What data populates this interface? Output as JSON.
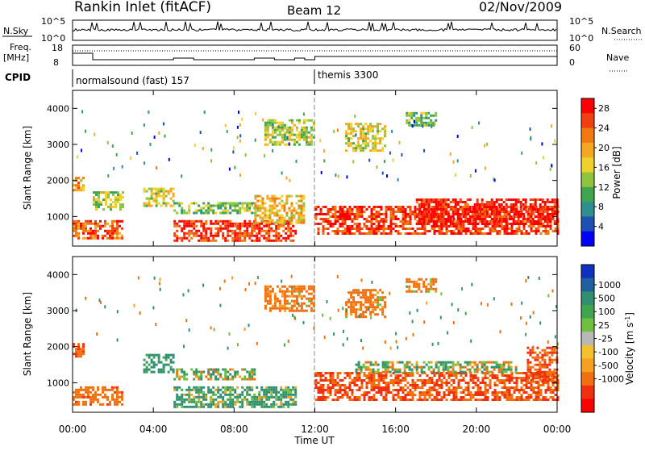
{
  "header": {
    "title": "Rankin Inlet (fitACF)",
    "beam": "Beam 12",
    "date": "02/Nov/2009"
  },
  "noise_panel": {
    "left_label": "N.Sky",
    "right_label": "N.Search",
    "left_ticks": [
      "10^5",
      "10^0"
    ],
    "right_ticks": [
      "10^5",
      "10^0"
    ]
  },
  "freq_panel": {
    "left_label_top": "Freq.",
    "left_label_bottom": "[MHz]",
    "left_ticks": [
      "18",
      "8"
    ],
    "right_ticks": [
      "60",
      "0"
    ],
    "right_label": "Nave"
  },
  "cpid": {
    "label": "CPID",
    "segments": [
      {
        "name": "normalsound (fast) 157",
        "start_hour": 0,
        "end_hour": 12
      },
      {
        "name": "themis 3300",
        "start_hour": 12,
        "end_hour": 24
      }
    ]
  },
  "chart_data": [
    {
      "type": "heatmap",
      "name": "power",
      "ylabel": "Slant Range [km]",
      "xlabel": "Time UT",
      "x_ticks": [
        "00:00",
        "04:00",
        "08:00",
        "12:00",
        "16:00",
        "20:00",
        "00:00"
      ],
      "xlim_hours": [
        0,
        24
      ],
      "y_ticks": [
        "1000",
        "2000",
        "3000",
        "4000"
      ],
      "ylim_km": [
        180,
        4500
      ],
      "colorbar": {
        "label": "Power [dB]",
        "ticks": [
          "4",
          "8",
          "12",
          "16",
          "20",
          "24",
          "28"
        ],
        "range": [
          0,
          30
        ],
        "colors": [
          "#0000ff",
          "#1e50b4",
          "#2f8f8f",
          "#3fa64f",
          "#8cc43c",
          "#f0d02a",
          "#f5a623",
          "#f07a10",
          "#f04010",
          "#ff0000"
        ]
      },
      "regions": [
        {
          "t0": 0.0,
          "t1": 0.5,
          "r0": 1700,
          "r1": 2100,
          "v": 20
        },
        {
          "t0": 0.0,
          "t1": 2.5,
          "r0": 400,
          "r1": 900,
          "v": 24
        },
        {
          "t0": 1.0,
          "t1": 2.5,
          "r0": 1200,
          "r1": 1700,
          "v": 14
        },
        {
          "t0": 3.5,
          "t1": 5.0,
          "r0": 1300,
          "r1": 1800,
          "v": 16
        },
        {
          "t0": 5.0,
          "t1": 11.0,
          "r0": 300,
          "r1": 900,
          "v": 26
        },
        {
          "t0": 5.0,
          "t1": 9.0,
          "r0": 1100,
          "r1": 1400,
          "v": 12
        },
        {
          "t0": 9.0,
          "t1": 11.5,
          "r0": 800,
          "r1": 1600,
          "v": 18
        },
        {
          "t0": 12.0,
          "t1": 24.0,
          "r0": 500,
          "r1": 1300,
          "v": 26
        },
        {
          "t0": 17.0,
          "t1": 24.0,
          "r0": 800,
          "r1": 1500,
          "v": 28
        },
        {
          "t0": 9.5,
          "t1": 12.0,
          "r0": 3000,
          "r1": 3700,
          "v": 14
        },
        {
          "t0": 13.5,
          "t1": 15.5,
          "r0": 2800,
          "r1": 3600,
          "v": 16
        },
        {
          "t0": 16.5,
          "t1": 18.0,
          "r0": 3500,
          "r1": 3900,
          "v": 12
        }
      ]
    },
    {
      "type": "heatmap",
      "name": "velocity",
      "ylabel": "Slant Range [km]",
      "xlabel": "Time UT",
      "x_ticks": [
        "00:00",
        "04:00",
        "08:00",
        "12:00",
        "16:00",
        "20:00",
        "00:00"
      ],
      "xlim_hours": [
        0,
        24
      ],
      "y_ticks": [
        "1000",
        "2000",
        "3000",
        "4000"
      ],
      "ylim_km": [
        180,
        4500
      ],
      "colorbar": {
        "label": "Velocity [m s^-1]",
        "ticks": [
          "1000",
          "500",
          "100",
          "25",
          "-25",
          "-100",
          "-500",
          "-1000"
        ],
        "colors": [
          "#1030c0",
          "#2060a0",
          "#2f8f6f",
          "#3fa64f",
          "#70c040",
          "#b8b8b8",
          "#f5c030",
          "#f5a020",
          "#f07010",
          "#f03010",
          "#ff0000"
        ]
      },
      "regions": [
        {
          "t0": 0.0,
          "t1": 0.5,
          "r0": 1700,
          "r1": 2100,
          "v": -300
        },
        {
          "t0": 0.0,
          "t1": 2.5,
          "r0": 400,
          "r1": 900,
          "v": -200
        },
        {
          "t0": 3.5,
          "t1": 5.0,
          "r0": 1300,
          "r1": 1800,
          "v": 150
        },
        {
          "t0": 5.0,
          "t1": 11.0,
          "r0": 300,
          "r1": 900,
          "v": 80
        },
        {
          "t0": 5.0,
          "t1": 9.0,
          "r0": 1100,
          "r1": 1400,
          "v": 0
        },
        {
          "t0": 12.0,
          "t1": 24.0,
          "r0": 500,
          "r1": 1300,
          "v": -300
        },
        {
          "t0": 14.0,
          "t1": 22.0,
          "r0": 1300,
          "r1": 1600,
          "v": 0
        },
        {
          "t0": 9.5,
          "t1": 12.0,
          "r0": 3000,
          "r1": 3700,
          "v": -150
        },
        {
          "t0": 13.5,
          "t1": 15.5,
          "r0": 2800,
          "r1": 3600,
          "v": -150
        },
        {
          "t0": 16.5,
          "t1": 18.0,
          "r0": 3500,
          "r1": 3900,
          "v": -100
        },
        {
          "t0": 22.5,
          "t1": 24.0,
          "r0": 1000,
          "r1": 2000,
          "v": -300
        }
      ]
    }
  ]
}
